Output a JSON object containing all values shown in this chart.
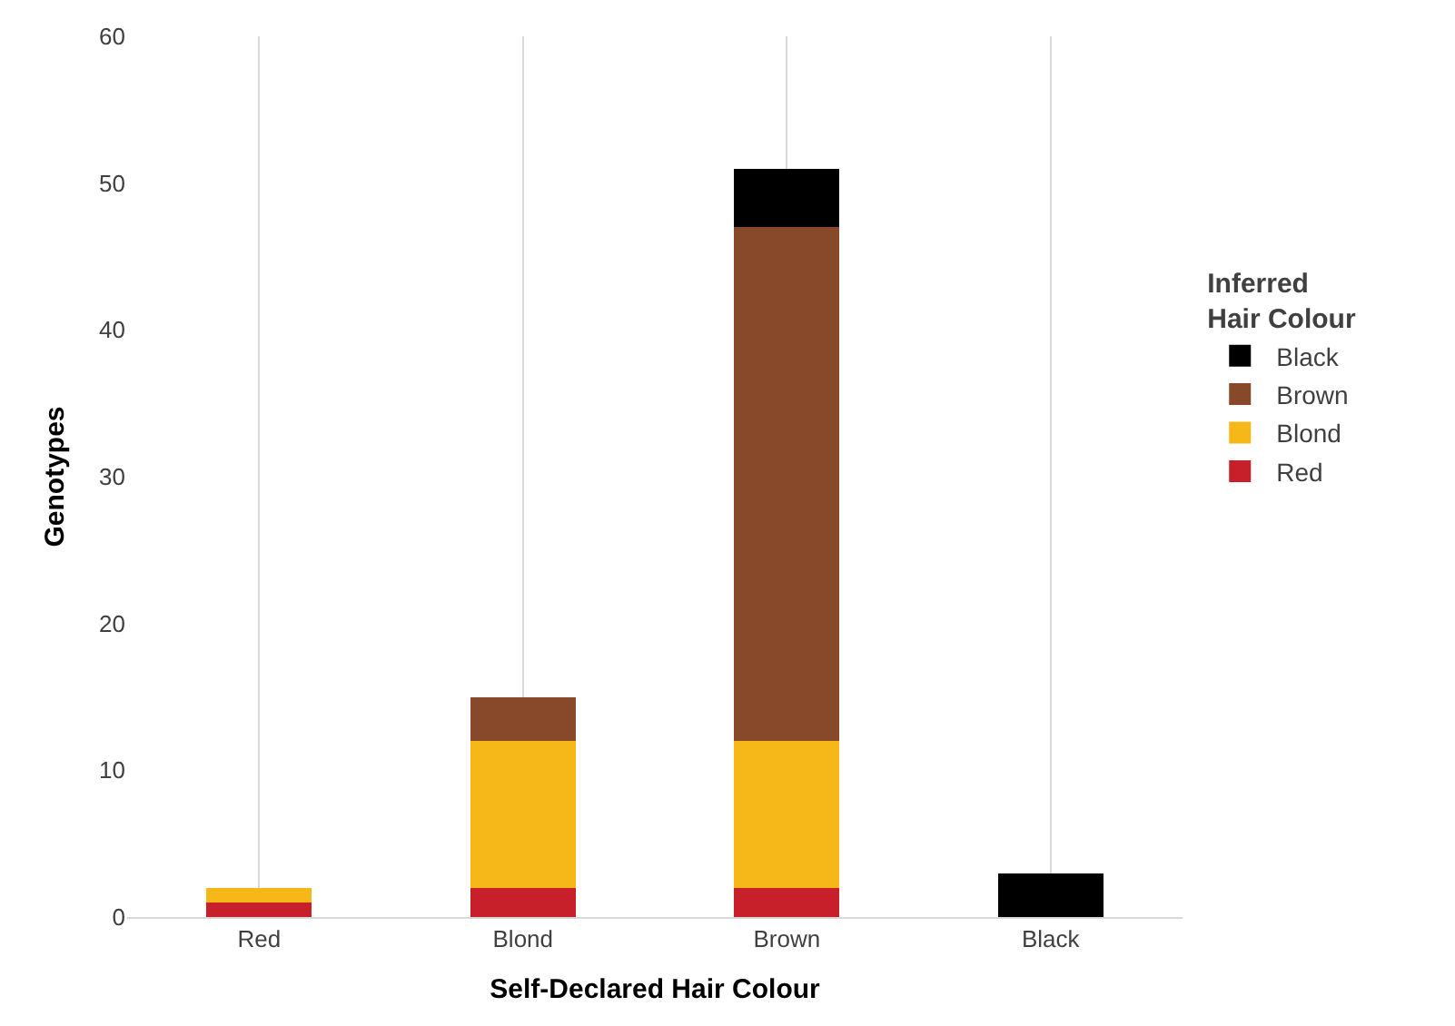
{
  "chart_data": {
    "type": "bar",
    "stacked": true,
    "xlabel": "Self-Declared Hair Colour",
    "ylabel": "Genotypes",
    "legend_title": "Inferred Hair Colour",
    "categories": [
      "Red",
      "Blond",
      "Brown",
      "Black"
    ],
    "series": [
      {
        "name": "Red",
        "color": "#c8202a",
        "values": [
          1,
          2,
          2,
          null
        ]
      },
      {
        "name": "Blond",
        "color": "#f6b718",
        "values": [
          1,
          10,
          10,
          null
        ]
      },
      {
        "name": "Brown",
        "color": "#87492a",
        "values": [
          null,
          3,
          35,
          null
        ]
      },
      {
        "name": "Black",
        "color": "#000000",
        "values": [
          null,
          null,
          4,
          3
        ]
      }
    ],
    "ylim": [
      0,
      60
    ],
    "yticks": [
      0,
      10,
      20,
      30,
      40,
      50,
      60
    ],
    "grid": "x",
    "legend": "right"
  }
}
